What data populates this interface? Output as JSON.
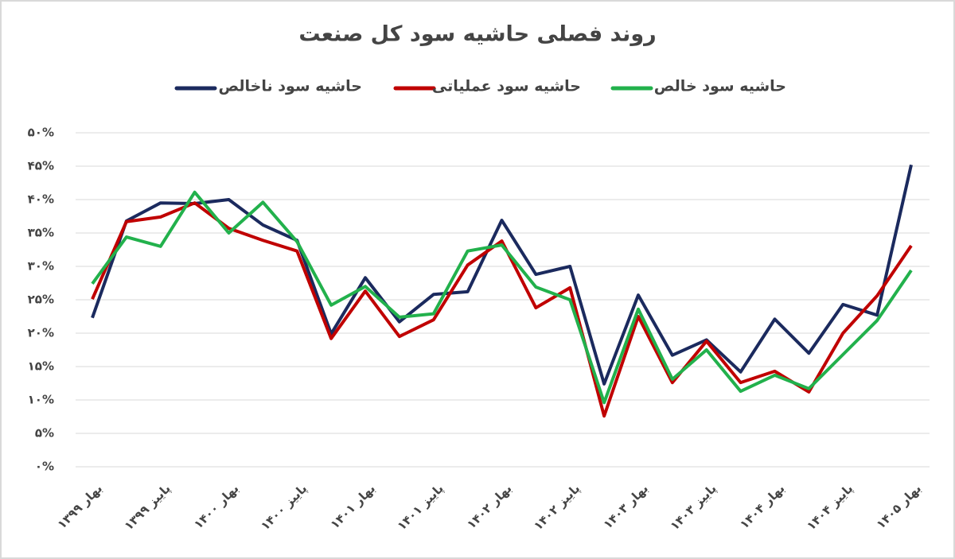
{
  "chart_data": {
    "type": "line",
    "title": "روند فصلی حاشیه سود کل صنعت",
    "categories": [
      "بهار ۱۳۹۹",
      null,
      "پاییز ۱۳۹۹",
      null,
      "بهار ۱۴۰۰",
      null,
      "پاییز ۱۴۰۰",
      null,
      "بهار ۱۴۰۱",
      null,
      "پاییز ۱۴۰۱",
      null,
      "بهار ۱۴۰۲",
      null,
      "پاییز ۱۴۰۲",
      null,
      "بهار ۱۴۰۳",
      null,
      "پاییز ۱۴۰۳",
      null,
      "بهار ۱۴۰۴",
      null,
      "پاییز ۱۴۰۴",
      null,
      "بهار ۱۴۰۵"
    ],
    "series": [
      {
        "name": "حاشیه سود ناخالص",
        "color": "#1b2a5e",
        "values": [
          22.3,
          36.8,
          39.5,
          39.4,
          40,
          36.2,
          33.9,
          19.9,
          28.3,
          21.7,
          25.8,
          26.2,
          36.9,
          28.8,
          30,
          12.4,
          25.7,
          16.7,
          19,
          14.2,
          22.1,
          17,
          24.3,
          22.7,
          45.2
        ]
      },
      {
        "name": "حاشیه سود عملیاتی",
        "color": "#c00000",
        "values": [
          25.1,
          36.7,
          37.4,
          39.5,
          35.7,
          33.9,
          32.3,
          19.2,
          26.3,
          19.5,
          22,
          30.2,
          33.8,
          23.8,
          26.8,
          7.6,
          22.5,
          12.6,
          18.8,
          12.6,
          14.3,
          11.2,
          20,
          25.6,
          33.1
        ]
      },
      {
        "name": "حاشیه سود خالص",
        "color": "#22b14c",
        "values": [
          27.4,
          34.4,
          33,
          41.1,
          35,
          39.6,
          33.7,
          24.2,
          27,
          22.4,
          22.9,
          32.3,
          33.2,
          26.9,
          25,
          9.6,
          23.6,
          13.1,
          17.5,
          11.3,
          13.7,
          11.7,
          16.8,
          21.9,
          29.4
        ]
      }
    ],
    "ylim": [
      0,
      50
    ],
    "yticks": [
      {
        "value": 0,
        "label": "۰%"
      },
      {
        "value": 5,
        "label": "۵%"
      },
      {
        "value": 10,
        "label": "۱۰%"
      },
      {
        "value": 15,
        "label": "۱۵%"
      },
      {
        "value": 20,
        "label": "۲۰%"
      },
      {
        "value": 25,
        "label": "۲۵%"
      },
      {
        "value": 30,
        "label": "۳۰%"
      },
      {
        "value": 35,
        "label": "۳۵%"
      },
      {
        "value": 40,
        "label": "۴۰%"
      },
      {
        "value": 45,
        "label": "۴۵%"
      },
      {
        "value": 50,
        "label": "۵۰%"
      }
    ],
    "grid": true
  }
}
